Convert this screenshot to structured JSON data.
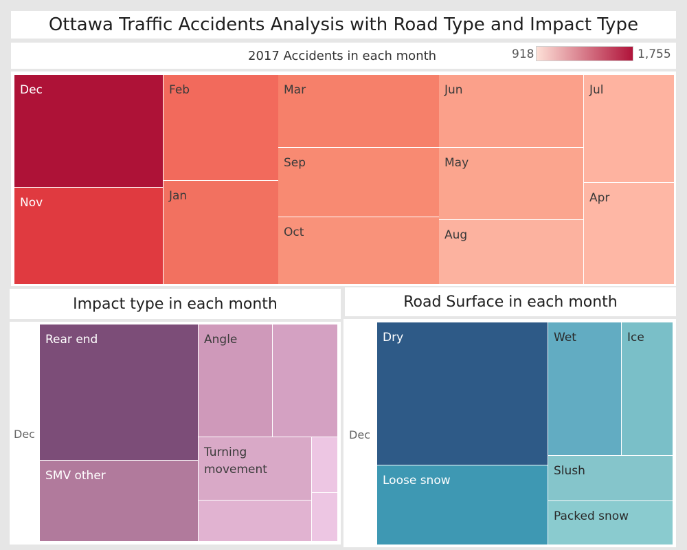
{
  "header": {
    "title": "Ottawa Traffic Accidents Analysis with Road Type and Impact Type",
    "subtitle": "2017 Accidents in each month"
  },
  "legend": {
    "min_label": "918",
    "max_label": "1,755",
    "min_color": "#fde0d7",
    "max_color": "#b0133a"
  },
  "panels": {
    "impact_title": "Impact type in each month",
    "road_title": "Road Surface in each month"
  },
  "chart_data": [
    {
      "type": "treemap",
      "title": "2017 Accidents in each month",
      "color_range": [
        918,
        1755
      ],
      "labels": [
        "Dec",
        "Nov",
        "Feb",
        "Jan",
        "Mar",
        "Sep",
        "Oct",
        "Jun",
        "May",
        "Aug",
        "Jul",
        "Apr"
      ],
      "values": [
        1755,
        1500,
        1420,
        1380,
        1330,
        1300,
        1270,
        1180,
        1160,
        1110,
        960,
        918
      ],
      "colors": [
        "#ae1237",
        "#e03a40",
        "#f26a5c",
        "#f27160",
        "#f6806a",
        "#f88a72",
        "#f9927a",
        "#fba08a",
        "#fba58e",
        "#fcb29f",
        "#feb3a0",
        "#feb7a5"
      ]
    },
    {
      "type": "treemap",
      "title": "Impact type in each month",
      "row_label": "Dec",
      "labels": [
        "Rear end",
        "SMV other",
        "Angle",
        "",
        "Turning movement",
        "",
        "",
        ""
      ],
      "values": [
        826,
        419,
        406,
        330,
        222,
        178,
        103,
        84
      ],
      "colors": [
        "#7c4d78",
        "#b17a9c",
        "#cf99ba",
        "#d4a1c2",
        "#d9a9c7",
        "#e1b3d1",
        "#edc6e3",
        "#edc6e3"
      ]
    },
    {
      "type": "treemap",
      "title": "Road Surface in each month",
      "row_label": "Dec",
      "labels": [
        "Dry",
        "Loose snow",
        "Wet",
        "Ice",
        "Slush",
        "Packed snow"
      ],
      "values": [
        1020,
        575,
        409,
        280,
        233,
        262
      ],
      "colors": [
        "#2e5a87",
        "#3e98b3",
        "#62acc2",
        "#7abfc8",
        "#85c5cb",
        "#8acbcf"
      ]
    }
  ]
}
